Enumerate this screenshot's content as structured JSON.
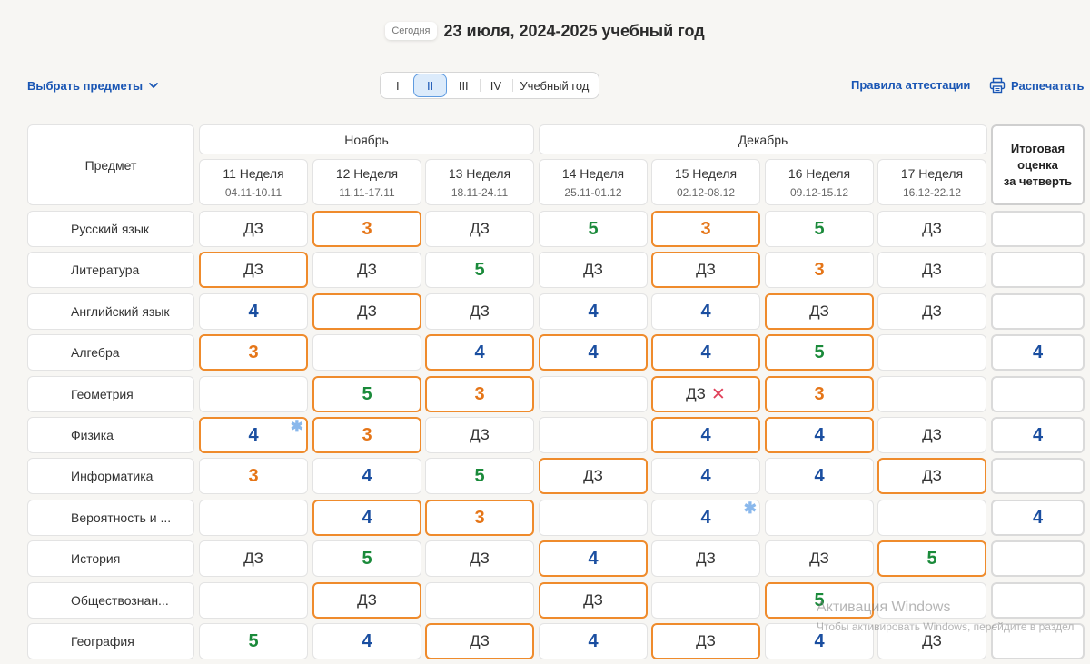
{
  "header": {
    "today_chip": "Сегодня",
    "title": "23 июля, 2024-2025 учебный год"
  },
  "toolbar": {
    "choose_subjects": "Выбрать предметы",
    "quarters": [
      "I",
      "II",
      "III",
      "IV",
      "Учебный год"
    ],
    "active_quarter": "II",
    "rules": "Правила аттестации",
    "print": "Распечатать"
  },
  "table": {
    "subject_header": "Предмет",
    "months": [
      "Ноябрь",
      "Декабрь"
    ],
    "weeks": [
      {
        "name": "11 Неделя",
        "dates": "04.11-10.11"
      },
      {
        "name": "12 Неделя",
        "dates": "11.11-17.11"
      },
      {
        "name": "13 Неделя",
        "dates": "18.11-24.11"
      },
      {
        "name": "14 Неделя",
        "dates": "25.11-01.12"
      },
      {
        "name": "15 Неделя",
        "dates": "02.12-08.12"
      },
      {
        "name": "16 Неделя",
        "dates": "09.12-15.12"
      },
      {
        "name": "17 Неделя",
        "dates": "16.12-22.12"
      }
    ],
    "final_header": [
      "Итоговая",
      "оценка",
      "за четверть"
    ],
    "rows": [
      {
        "subject": "Русский язык",
        "final": "",
        "cells": [
          {
            "v": "ДЗ"
          },
          {
            "v": "3",
            "hl": true
          },
          {
            "v": "ДЗ"
          },
          {
            "v": "5"
          },
          {
            "v": "3",
            "hl": true
          },
          {
            "v": "5"
          },
          {
            "v": "ДЗ"
          }
        ]
      },
      {
        "subject": "Литература",
        "final": "",
        "cells": [
          {
            "v": "ДЗ",
            "hl": true
          },
          {
            "v": "ДЗ"
          },
          {
            "v": "5"
          },
          {
            "v": "ДЗ"
          },
          {
            "v": "ДЗ",
            "hl": true
          },
          {
            "v": "3"
          },
          {
            "v": "ДЗ"
          }
        ]
      },
      {
        "subject": "Английский язык",
        "final": "",
        "cells": [
          {
            "v": "4"
          },
          {
            "v": "ДЗ",
            "hl": true
          },
          {
            "v": "ДЗ"
          },
          {
            "v": "4"
          },
          {
            "v": "4"
          },
          {
            "v": "ДЗ",
            "hl": true
          },
          {
            "v": "ДЗ"
          }
        ]
      },
      {
        "subject": "Алгебра",
        "final": "4",
        "cells": [
          {
            "v": "3",
            "hl": true
          },
          {
            "v": ""
          },
          {
            "v": "4",
            "hl": true
          },
          {
            "v": "4",
            "hl": true
          },
          {
            "v": "4",
            "hl": true
          },
          {
            "v": "5",
            "hl": true
          },
          {
            "v": ""
          }
        ]
      },
      {
        "subject": "Геометрия",
        "final": "",
        "cells": [
          {
            "v": ""
          },
          {
            "v": "5",
            "hl": true
          },
          {
            "v": "3",
            "hl": true
          },
          {
            "v": ""
          },
          {
            "v": "ДЗ",
            "hl": true,
            "x": true
          },
          {
            "v": "3",
            "hl": true
          },
          {
            "v": ""
          }
        ]
      },
      {
        "subject": "Физика",
        "final": "4",
        "cells": [
          {
            "v": "4",
            "hl": true,
            "star": true
          },
          {
            "v": "3",
            "hl": true
          },
          {
            "v": "ДЗ"
          },
          {
            "v": ""
          },
          {
            "v": "4",
            "hl": true
          },
          {
            "v": "4",
            "hl": true
          },
          {
            "v": "ДЗ"
          }
        ]
      },
      {
        "subject": "Информатика",
        "final": "",
        "cells": [
          {
            "v": "3"
          },
          {
            "v": "4"
          },
          {
            "v": "5"
          },
          {
            "v": "ДЗ",
            "hl": true
          },
          {
            "v": "4"
          },
          {
            "v": "4"
          },
          {
            "v": "ДЗ",
            "hl": true
          }
        ]
      },
      {
        "subject": "Вероятность и ...",
        "final": "4",
        "cells": [
          {
            "v": ""
          },
          {
            "v": "4",
            "hl": true
          },
          {
            "v": "3",
            "hl": true
          },
          {
            "v": ""
          },
          {
            "v": "4",
            "star": true
          },
          {
            "v": ""
          },
          {
            "v": ""
          }
        ]
      },
      {
        "subject": "История",
        "final": "",
        "cells": [
          {
            "v": "ДЗ"
          },
          {
            "v": "5"
          },
          {
            "v": "ДЗ"
          },
          {
            "v": "4",
            "hl": true
          },
          {
            "v": "ДЗ"
          },
          {
            "v": "ДЗ"
          },
          {
            "v": "5",
            "hl": true
          }
        ]
      },
      {
        "subject": "Обществознан...",
        "final": "",
        "cells": [
          {
            "v": ""
          },
          {
            "v": "ДЗ",
            "hl": true
          },
          {
            "v": ""
          },
          {
            "v": "ДЗ",
            "hl": true
          },
          {
            "v": ""
          },
          {
            "v": "5",
            "hl": true
          },
          {
            "v": ""
          }
        ]
      },
      {
        "subject": "География",
        "final": "",
        "cells": [
          {
            "v": "5"
          },
          {
            "v": "4"
          },
          {
            "v": "ДЗ",
            "hl": true
          },
          {
            "v": "4"
          },
          {
            "v": "ДЗ",
            "hl": true
          },
          {
            "v": "4"
          },
          {
            "v": "ДЗ"
          }
        ]
      }
    ]
  },
  "watermark": {
    "line1": "Активация Windows",
    "line2": "Чтобы активировать Windows, перейдите в раздел"
  }
}
